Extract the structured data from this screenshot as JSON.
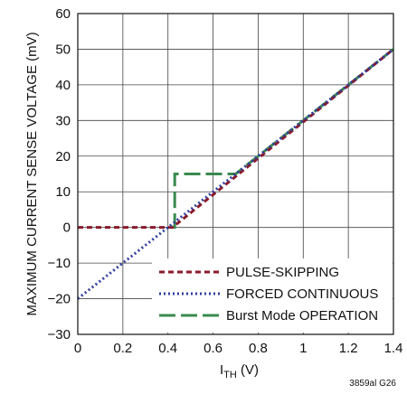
{
  "chart_data": {
    "type": "line",
    "xlabel_main": "I",
    "xlabel_sub": "TH",
    "xlabel_unit": " (V)",
    "ylabel": "MAXIMUM CURRENT SENSE VOLTAGE (mV)",
    "xlim": [
      0,
      1.4
    ],
    "ylim": [
      -30,
      60
    ],
    "x_ticks": [
      "0",
      "0.2",
      "0.4",
      "0.6",
      "0.8",
      "1",
      "1.2",
      "1.4"
    ],
    "x_tick_values": [
      0,
      0.2,
      0.4,
      0.6,
      0.8,
      1.0,
      1.2,
      1.4
    ],
    "y_ticks": [
      "−30",
      "−20",
      "−10",
      "0",
      "10",
      "20",
      "30",
      "40",
      "50",
      "60"
    ],
    "y_tick_values": [
      -30,
      -20,
      -10,
      0,
      10,
      20,
      30,
      40,
      50,
      60
    ],
    "grid": true,
    "legend_position": "bottom-right",
    "figure_id": "3859al G26",
    "series": [
      {
        "name": "PULSE-SKIPPING",
        "color": "#8b1a2b",
        "style": "short-dash",
        "x": [
          0,
          0.42,
          1.4
        ],
        "y": [
          0,
          0,
          50
        ]
      },
      {
        "name": "FORCED CONTINUOUS",
        "color": "#2f3f9e",
        "style": "dotted",
        "x": [
          0,
          1.4
        ],
        "y": [
          -20,
          50
        ]
      },
      {
        "name": "Burst Mode OPERATION",
        "color": "#3a8a4e",
        "style": "long-dash",
        "x": [
          0.42,
          0.43,
          0.43,
          0.7,
          1.4
        ],
        "y": [
          0,
          0,
          15,
          15,
          50
        ]
      }
    ]
  }
}
